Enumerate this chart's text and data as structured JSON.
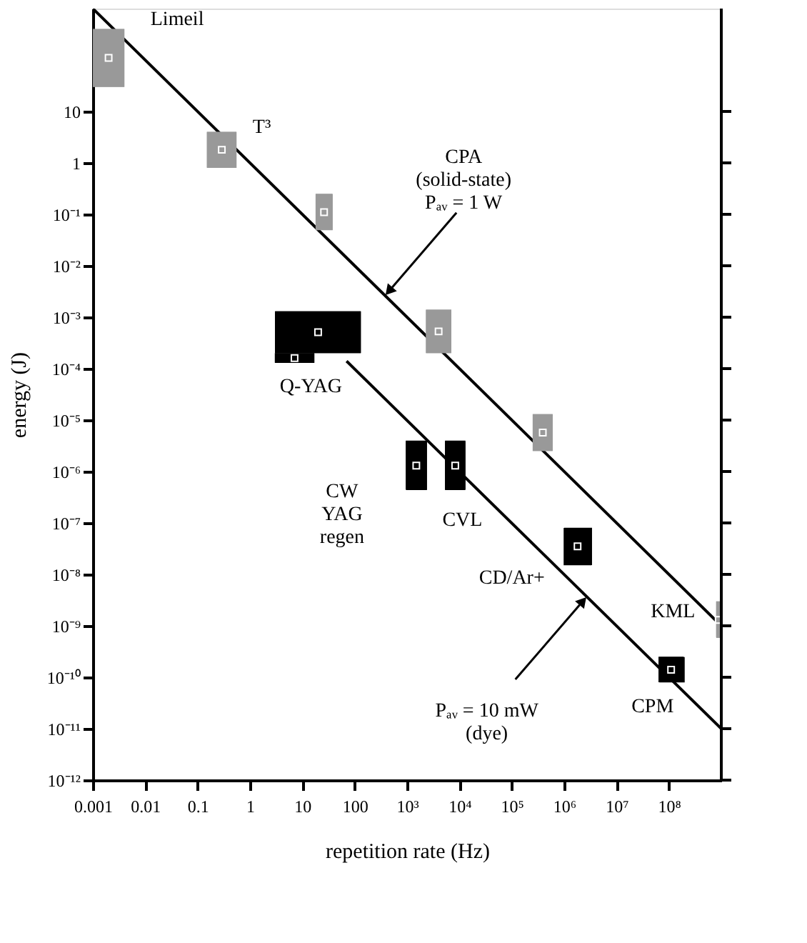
{
  "chart_data": {
    "type": "line",
    "xlabel": "repetition rate (Hz)",
    "ylabel": "energy (J)",
    "log": "xy",
    "grid": false,
    "line_style": "solid",
    "xlim": [
      0.001,
      1000000000
    ],
    "ylim": [
      1e-12,
      1000
    ],
    "xticks": [
      0.001,
      0.01,
      0.1,
      1,
      10,
      100,
      {
        "value": 1000,
        "label": "10³"
      },
      {
        "value": 10000,
        "label": "10⁴"
      },
      {
        "value": 100000,
        "label": "10⁵"
      },
      {
        "value": 1000000,
        "label": "10⁶"
      },
      {
        "value": 10000000,
        "label": "10⁷"
      },
      {
        "value": 100000000,
        "label": "10⁸"
      }
    ],
    "yticks": [
      10,
      1,
      {
        "value": 0.1,
        "label": "10⁻¹"
      },
      {
        "value": 0.01,
        "label": "10⁻²"
      },
      {
        "value": 0.001,
        "label": "10⁻³"
      },
      {
        "value": 0.0001,
        "label": "10⁻⁴"
      },
      {
        "value": 1e-05,
        "label": "10⁻⁵"
      },
      {
        "value": 1e-06,
        "label": "10⁻⁶"
      },
      {
        "value": 1e-07,
        "label": "10⁻⁷"
      },
      {
        "value": 1e-08,
        "label": "10⁻⁸"
      },
      {
        "value": 1e-09,
        "label": "10⁻⁹"
      },
      {
        "value": 1e-10,
        "label": "10⁻¹⁰"
      },
      {
        "value": 1e-11,
        "label": "10⁻¹¹"
      },
      {
        "value": 1e-12,
        "label": "10⁻¹²"
      }
    ],
    "series": [
      {
        "type": "line",
        "color": "#000000",
        "x": [
          0.001,
          1000000000
        ],
        "values": [
          1000,
          1e-09
        ]
      },
      {
        "type": "line",
        "color": "#000000",
        "x": [
          70,
          1000000000
        ],
        "values": [
          0.00014,
          1e-11
        ]
      },
      {
        "type": "scatter",
        "marker": "square",
        "color": "#999999",
        "x": [
          0.002,
          0.29,
          26,
          4000,
          390000,
          890000000
        ],
        "values": [
          110,
          1.8,
          0.11,
          0.00053,
          5.7e-06,
          1.3e-09
        ],
        "xerrors": [
          [
            0.001,
            0.004
          ],
          [
            0.15,
            0.55
          ],
          [
            18,
            38
          ],
          [
            2300,
            7000
          ],
          [
            250000,
            600000
          ],
          [
            800000000,
            1000000000
          ]
        ],
        "errors": [
          [
            30,
            400
          ],
          [
            0.8,
            4
          ],
          [
            0.05,
            0.25
          ],
          [
            0.0002,
            0.0014
          ],
          [
            2.5e-06,
            1.3e-05
          ],
          [
            6e-10,
            3e-09
          ]
        ]
      },
      {
        "type": "scatter",
        "marker": "square",
        "color": "#000000",
        "x": [
          20,
          7.1,
          1500,
          8300,
          1800000,
          110000000
        ],
        "values": [
          0.00051,
          0.00016,
          1.3e-06,
          1.3e-06,
          3.5e-08,
          1.4e-10
        ],
        "xerrors": [
          [
            3,
            130
          ],
          [
            3,
            17
          ],
          [
            950,
            2400
          ],
          [
            5300,
            13000
          ],
          [
            1000000,
            3400000
          ],
          [
            66000000,
            200000000
          ]
        ],
        "errors": [
          [
            0.0002,
            0.0013
          ],
          [
            0.00013,
            0.0002
          ],
          [
            4.5e-07,
            4e-06
          ],
          [
            4.5e-07,
            4e-06
          ],
          [
            1.5e-08,
            8e-08
          ],
          [
            8e-11,
            2.5e-10
          ]
        ]
      }
    ],
    "annotations": [
      {
        "text": "Limeil",
        "x": 0.002,
        "y": 110
      },
      {
        "text": "T³",
        "x": 0.29,
        "y": 1.8
      },
      {
        "text": "Q-YAG",
        "x": 20,
        "y": 0.00051
      },
      {
        "text": "CW\nYAG\nregen",
        "x": 1500,
        "y": 1.3e-06
      },
      {
        "text": "CVL",
        "x": 8300,
        "y": 1.3e-06
      },
      {
        "text": "CD/Ar+",
        "x": 1800000,
        "y": 3.5e-08
      },
      {
        "text": "KML",
        "x": 890000000,
        "y": 1.3e-09
      },
      {
        "text": "CPM",
        "x": 110000000,
        "y": 1.4e-10
      },
      {
        "text": "CPA\n(solid-state)\nPₐᵥ = 1 W",
        "x": 380,
        "y": 0.00263
      },
      {
        "text": "Pₐᵥ = 10 mW\n(dye)",
        "x": 2700000,
        "y": 3.7e-09
      }
    ]
  }
}
